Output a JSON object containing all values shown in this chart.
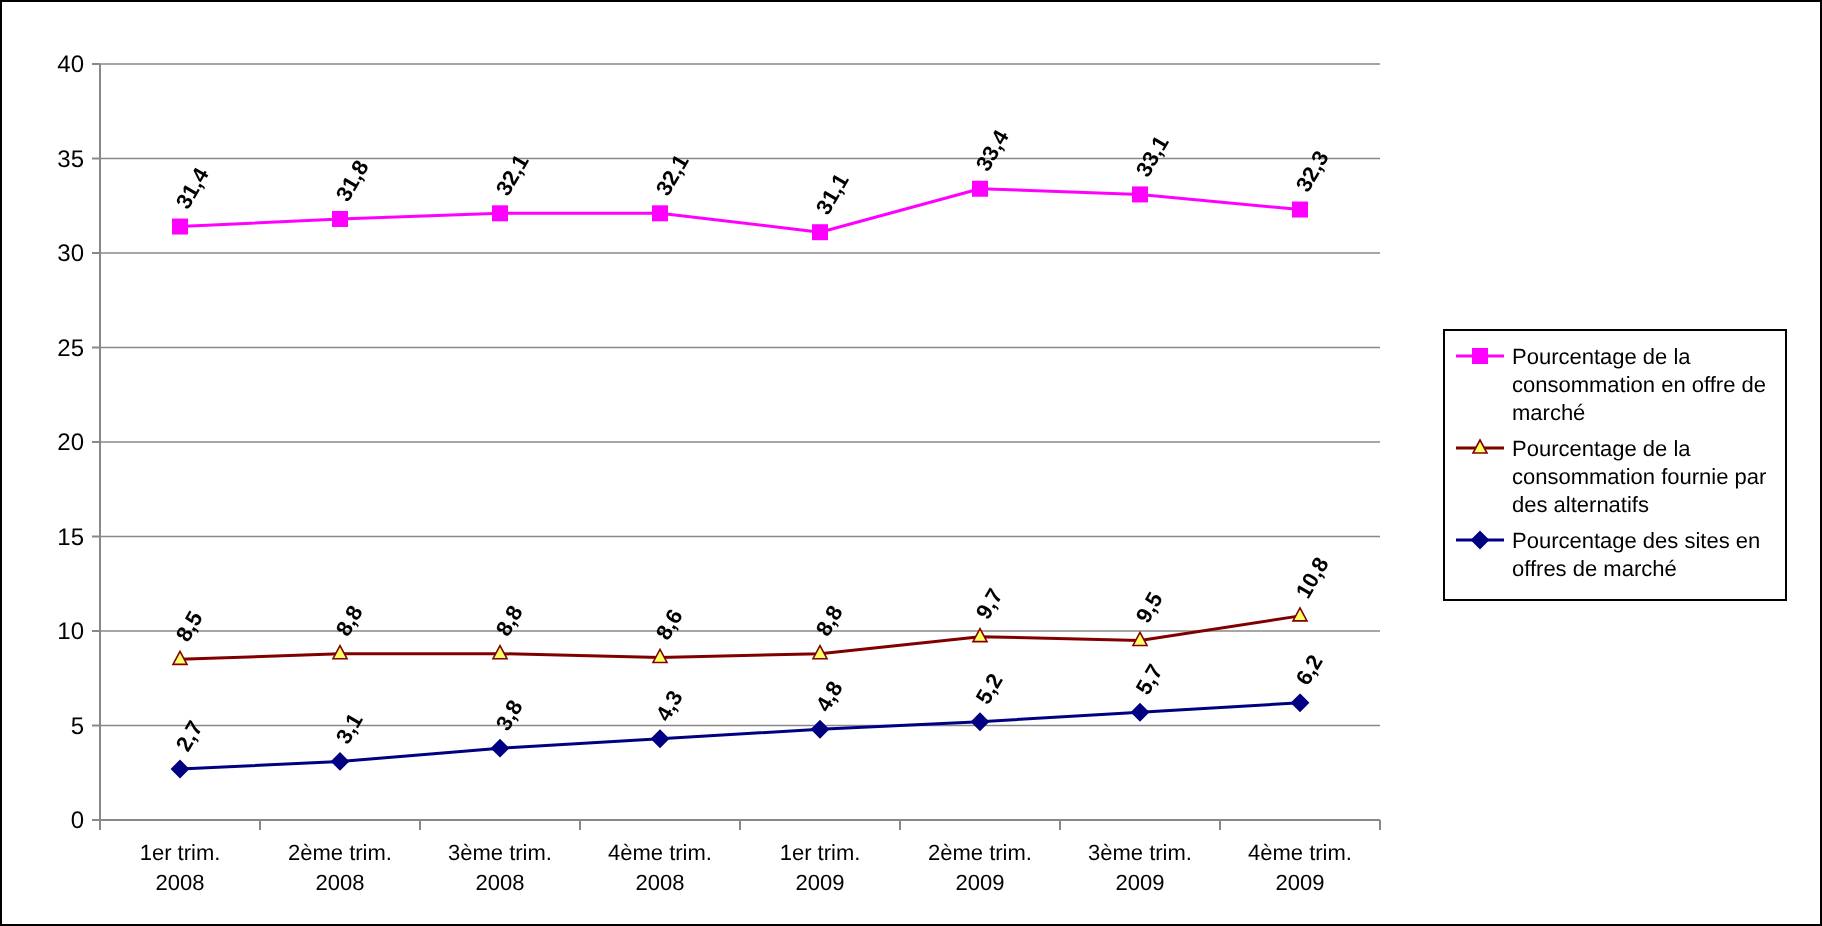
{
  "chart_data": {
    "type": "line",
    "categories": [
      "1er trim. 2008",
      "2ème trim. 2008",
      "3ème trim. 2008",
      "4ème trim. 2008",
      "1er trim. 2009",
      "2ème trim. 2009",
      "3ème trim. 2009",
      "4ème trim. 2009"
    ],
    "series": [
      {
        "name": "Pourcentage de la consommation en offre de marché",
        "color": "#ff00ff",
        "marker": "square",
        "values": [
          31.4,
          31.8,
          32.1,
          32.1,
          31.1,
          33.4,
          33.1,
          32.3
        ],
        "value_labels": [
          "31,4",
          "31,8",
          "32,1",
          "32,1",
          "31,1",
          "33,4",
          "33,1",
          "32,3"
        ]
      },
      {
        "name": "Pourcentage de la consommation fournie par des alternatifs",
        "color": "#800000",
        "marker": "triangle",
        "values": [
          8.5,
          8.8,
          8.8,
          8.6,
          8.8,
          9.7,
          9.5,
          10.8
        ],
        "value_labels": [
          "8,5",
          "8,8",
          "8,8",
          "8,6",
          "8,8",
          "9,7",
          "9,5",
          "10,8"
        ]
      },
      {
        "name": "Pourcentage des sites en offres de marché",
        "color": "#000080",
        "marker": "diamond",
        "values": [
          2.7,
          3.1,
          3.8,
          4.3,
          4.8,
          5.2,
          5.7,
          6.2
        ],
        "value_labels": [
          "2,7",
          "3,1",
          "3,8",
          "4,3",
          "4,8",
          "5,2",
          "5,7",
          "6,2"
        ]
      }
    ],
    "ylim": [
      0,
      40
    ],
    "yticks": [
      0,
      5,
      10,
      15,
      20,
      25,
      30,
      35,
      40
    ],
    "grid": "y",
    "legend": "right"
  }
}
